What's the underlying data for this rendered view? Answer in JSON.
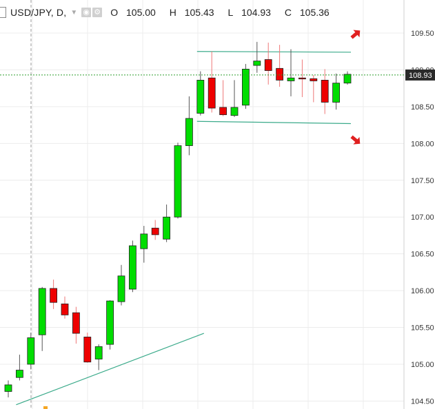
{
  "header": {
    "symbol": "USD/JPY, D,",
    "open_label": "O",
    "open": "105.00",
    "high_label": "H",
    "high": "105.43",
    "low_label": "L",
    "low": "104.93",
    "close_label": "C",
    "close": "105.36",
    "caret_icon": "chevron-down-icon",
    "eye_icon": "eye-icon",
    "settings_icon": "gear-icon"
  },
  "colors": {
    "up": "#00dd00",
    "down": "#ee0000",
    "wick_up": "#555555",
    "wick_down": "#ee7777",
    "trendline": "#3aaa8a",
    "current_price_line": "#2e9e2e",
    "arrow": "#e02020",
    "grid": "#ececec",
    "axis_text": "#333333",
    "price_tag_bg": "#2a2a2a"
  },
  "chart_data": {
    "type": "candlestick",
    "symbol": "USD/JPY",
    "timeframe": "D",
    "y_axis": {
      "ticks": [
        "104.50",
        "105.00",
        "105.50",
        "106.00",
        "106.50",
        "107.00",
        "107.50",
        "108.00",
        "108.50",
        "109.00",
        "109.50"
      ],
      "ylim": [
        104.45,
        109.72
      ]
    },
    "current_price": "108.93",
    "grid": true,
    "candles": [
      {
        "o": 104.63,
        "h": 104.78,
        "l": 104.55,
        "c": 104.72
      },
      {
        "o": 104.82,
        "h": 105.13,
        "l": 104.78,
        "c": 104.92
      },
      {
        "o": 105.0,
        "h": 105.43,
        "l": 104.93,
        "c": 105.36
      },
      {
        "o": 105.4,
        "h": 106.05,
        "l": 105.18,
        "c": 106.03
      },
      {
        "o": 106.03,
        "h": 106.15,
        "l": 105.75,
        "c": 105.84
      },
      {
        "o": 105.82,
        "h": 105.92,
        "l": 105.62,
        "c": 105.67
      },
      {
        "o": 105.7,
        "h": 105.78,
        "l": 105.28,
        "c": 105.42
      },
      {
        "o": 105.37,
        "h": 105.43,
        "l": 105.02,
        "c": 105.03
      },
      {
        "o": 105.07,
        "h": 105.27,
        "l": 104.92,
        "c": 105.24
      },
      {
        "o": 105.27,
        "h": 105.87,
        "l": 105.2,
        "c": 105.86
      },
      {
        "o": 105.85,
        "h": 106.35,
        "l": 105.8,
        "c": 106.2
      },
      {
        "o": 106.02,
        "h": 106.68,
        "l": 105.98,
        "c": 106.61
      },
      {
        "o": 106.57,
        "h": 106.88,
        "l": 106.38,
        "c": 106.77
      },
      {
        "o": 106.85,
        "h": 106.96,
        "l": 106.69,
        "c": 106.76
      },
      {
        "o": 106.7,
        "h": 107.17,
        "l": 106.66,
        "c": 107.0
      },
      {
        "o": 107.0,
        "h": 108.01,
        "l": 106.98,
        "c": 107.97
      },
      {
        "o": 107.97,
        "h": 108.64,
        "l": 107.84,
        "c": 108.34
      },
      {
        "o": 108.41,
        "h": 108.98,
        "l": 108.38,
        "c": 108.86
      },
      {
        "o": 108.89,
        "h": 109.25,
        "l": 108.42,
        "c": 108.48
      },
      {
        "o": 108.49,
        "h": 108.86,
        "l": 108.37,
        "c": 108.39
      },
      {
        "o": 108.38,
        "h": 108.86,
        "l": 108.36,
        "c": 108.49
      },
      {
        "o": 108.52,
        "h": 109.08,
        "l": 108.47,
        "c": 109.01
      },
      {
        "o": 109.06,
        "h": 109.38,
        "l": 108.96,
        "c": 109.12
      },
      {
        "o": 109.14,
        "h": 109.37,
        "l": 108.8,
        "c": 108.99
      },
      {
        "o": 109.02,
        "h": 109.34,
        "l": 108.77,
        "c": 108.86
      },
      {
        "o": 108.85,
        "h": 109.28,
        "l": 108.64,
        "c": 108.89
      },
      {
        "o": 108.89,
        "h": 109.14,
        "l": 108.63,
        "c": 108.88
      },
      {
        "o": 108.88,
        "h": 108.93,
        "l": 108.56,
        "c": 108.85
      },
      {
        "o": 108.86,
        "h": 109.01,
        "l": 108.4,
        "c": 108.56
      },
      {
        "o": 108.56,
        "h": 108.95,
        "l": 108.46,
        "c": 108.82
      },
      {
        "o": 108.82,
        "h": 108.98,
        "l": 108.8,
        "c": 108.94
      }
    ],
    "trendlines": [
      {
        "name": "range-top",
        "from": {
          "index": 17,
          "price": 109.25
        },
        "to": {
          "index": 30,
          "price": 109.24
        }
      },
      {
        "name": "range-bottom",
        "from": {
          "index": 17,
          "price": 108.3
        },
        "to": {
          "index": 30,
          "price": 108.27
        }
      },
      {
        "name": "support",
        "from": {
          "index": 1,
          "price": 104.45
        },
        "to": {
          "index": 17,
          "price": 105.42
        }
      }
    ],
    "arrows": [
      {
        "name": "breakout-up-arrow",
        "direction": "up-right",
        "index": 31,
        "price": 109.48
      },
      {
        "name": "breakdown-down-arrow",
        "direction": "down-right",
        "index": 31,
        "price": 108.05
      }
    ]
  }
}
